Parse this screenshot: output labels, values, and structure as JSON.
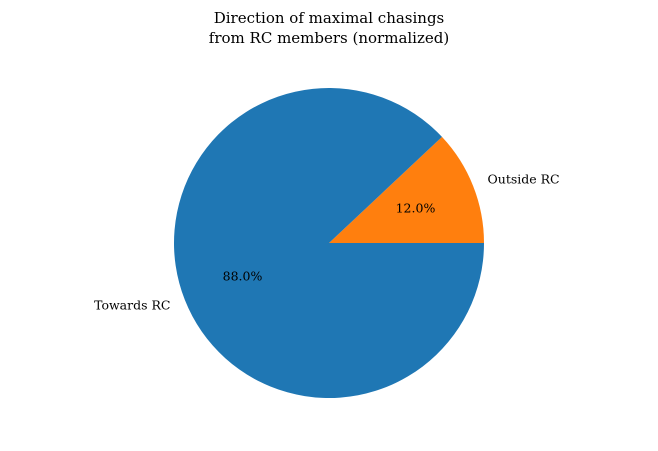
{
  "chart_data": {
    "type": "pie",
    "title": [
      "Direction of maximal chasings",
      "from RC members (normalized)"
    ],
    "slices": [
      {
        "label": "Outside RC",
        "value": 12.0,
        "pct_label": "12.0%",
        "color": "#ff7f0e"
      },
      {
        "label": "Towards RC",
        "value": 88.0,
        "pct_label": "88.0%",
        "color": "#1f77b4"
      }
    ],
    "start_angle_deg": 0,
    "direction": "counterclockwise",
    "legend": "none"
  }
}
